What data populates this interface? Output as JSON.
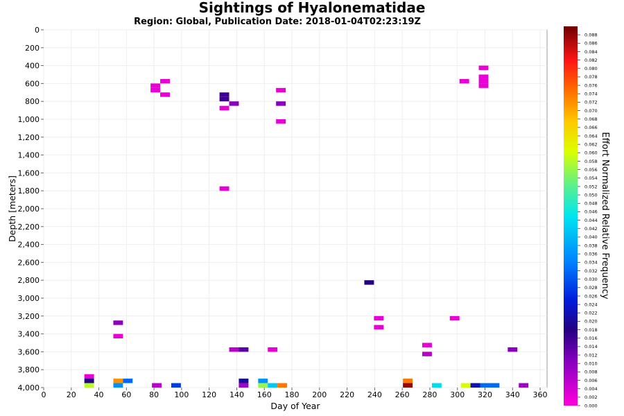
{
  "chart_data": {
    "type": "heatmap",
    "title": "Sightings of Hyalonematidae",
    "subtitle": "Region: Global, Publication Date: 2018-01-04T02:23:19Z",
    "xlabel": "Day of Year",
    "ylabel": "Depth [meters]",
    "colorbar_label": "Effort Normalized Relative Frequency",
    "xlim": [
      0,
      365
    ],
    "ylim": [
      0,
      4000
    ],
    "y_inverted": true,
    "x_ticks": [
      "0",
      "20",
      "40",
      "60",
      "80",
      "100",
      "120",
      "140",
      "160",
      "180",
      "200",
      "220",
      "240",
      "260",
      "280",
      "300",
      "320",
      "340",
      "360"
    ],
    "y_ticks": [
      "0",
      "200",
      "400",
      "600",
      "800",
      "1,000",
      "1,200",
      "1,400",
      "1,600",
      "1,800",
      "2,000",
      "2,200",
      "2,400",
      "2,600",
      "2,800",
      "3,000",
      "3,200",
      "3,400",
      "3,600",
      "3,800",
      "4,000"
    ],
    "colorbar_ticks": [
      "0.000",
      "0.002",
      "0.004",
      "0.006",
      "0.008",
      "0.010",
      "0.012",
      "0.014",
      "0.016",
      "0.018",
      "0.020",
      "0.022",
      "0.024",
      "0.026",
      "0.028",
      "0.030",
      "0.032",
      "0.034",
      "0.036",
      "0.038",
      "0.040",
      "0.042",
      "0.044",
      "0.046",
      "0.048",
      "0.050",
      "0.052",
      "0.054",
      "0.056",
      "0.058",
      "0.060",
      "0.062",
      "0.064",
      "0.066",
      "0.068",
      "0.070",
      "0.072",
      "0.074",
      "0.076",
      "0.078",
      "0.080",
      "0.082",
      "0.084",
      "0.086",
      "0.088"
    ],
    "colorbar_range": [
      0,
      0.09
    ],
    "cell_size": {
      "day": 7,
      "depth": 50
    },
    "cells": [
      {
        "day": 81,
        "depth": 625,
        "value": 0.002
      },
      {
        "day": 81,
        "depth": 675,
        "value": 0.002
      },
      {
        "day": 88,
        "depth": 575,
        "value": 0.002
      },
      {
        "day": 88,
        "depth": 725,
        "value": 0.002
      },
      {
        "day": 131,
        "depth": 725,
        "value": 0.016
      },
      {
        "day": 131,
        "depth": 775,
        "value": 0.016
      },
      {
        "day": 138,
        "depth": 825,
        "value": 0.01
      },
      {
        "day": 131,
        "depth": 875,
        "value": 0.002
      },
      {
        "day": 172,
        "depth": 675,
        "value": 0.002
      },
      {
        "day": 172,
        "depth": 825,
        "value": 0.01
      },
      {
        "day": 172,
        "depth": 1025,
        "value": 0.002
      },
      {
        "day": 131,
        "depth": 1775,
        "value": 0.002
      },
      {
        "day": 305,
        "depth": 575,
        "value": 0.002
      },
      {
        "day": 319,
        "depth": 425,
        "value": 0.002
      },
      {
        "day": 319,
        "depth": 525,
        "value": 0.002
      },
      {
        "day": 319,
        "depth": 575,
        "value": 0.002
      },
      {
        "day": 319,
        "depth": 625,
        "value": 0.002
      },
      {
        "day": 236,
        "depth": 2825,
        "value": 0.018
      },
      {
        "day": 54,
        "depth": 3275,
        "value": 0.01
      },
      {
        "day": 54,
        "depth": 3425,
        "value": 0.002
      },
      {
        "day": 243,
        "depth": 3225,
        "value": 0.002
      },
      {
        "day": 243,
        "depth": 3325,
        "value": 0.002
      },
      {
        "day": 298,
        "depth": 3225,
        "value": 0.002
      },
      {
        "day": 138,
        "depth": 3575,
        "value": 0.006
      },
      {
        "day": 145,
        "depth": 3575,
        "value": 0.014
      },
      {
        "day": 166,
        "depth": 3575,
        "value": 0.002
      },
      {
        "day": 278,
        "depth": 3525,
        "value": 0.002
      },
      {
        "day": 278,
        "depth": 3625,
        "value": 0.006
      },
      {
        "day": 340,
        "depth": 3575,
        "value": 0.01
      },
      {
        "day": 33,
        "depth": 3875,
        "value": 0.002
      },
      {
        "day": 33,
        "depth": 3925,
        "value": 0.018
      },
      {
        "day": 33,
        "depth": 3975,
        "value": 0.058
      },
      {
        "day": 54,
        "depth": 3925,
        "value": 0.072
      },
      {
        "day": 54,
        "depth": 3975,
        "value": 0.036
      },
      {
        "day": 61,
        "depth": 3925,
        "value": 0.032
      },
      {
        "day": 82,
        "depth": 3975,
        "value": 0.006
      },
      {
        "day": 96,
        "depth": 3975,
        "value": 0.028
      },
      {
        "day": 145,
        "depth": 3925,
        "value": 0.02
      },
      {
        "day": 145,
        "depth": 3975,
        "value": 0.008
      },
      {
        "day": 159,
        "depth": 3925,
        "value": 0.036
      },
      {
        "day": 159,
        "depth": 3975,
        "value": 0.056
      },
      {
        "day": 166,
        "depth": 3975,
        "value": 0.042
      },
      {
        "day": 173,
        "depth": 3975,
        "value": 0.074
      },
      {
        "day": 264,
        "depth": 3925,
        "value": 0.074
      },
      {
        "day": 264,
        "depth": 3975,
        "value": 0.088
      },
      {
        "day": 285,
        "depth": 3975,
        "value": 0.044
      },
      {
        "day": 306,
        "depth": 3975,
        "value": 0.06
      },
      {
        "day": 313,
        "depth": 3975,
        "value": 0.022
      },
      {
        "day": 320,
        "depth": 3975,
        "value": 0.032
      },
      {
        "day": 327,
        "depth": 3975,
        "value": 0.032
      },
      {
        "day": 348,
        "depth": 3975,
        "value": 0.008
      }
    ],
    "grid": true,
    "legend": "colorbar-right"
  }
}
